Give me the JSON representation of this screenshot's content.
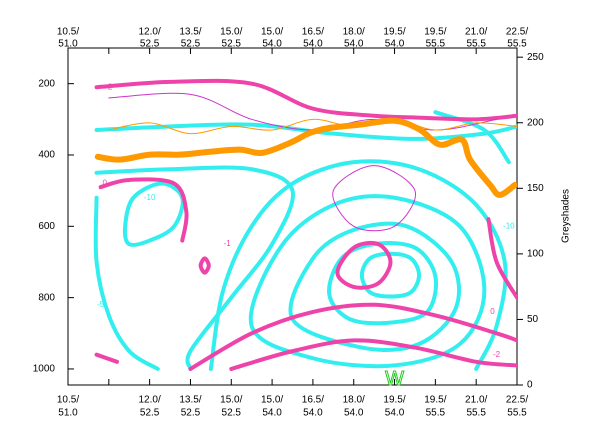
{
  "chart_data": {
    "type": "contour",
    "categories": [
      "10.5/",
      null,
      "12.0/",
      "13.5/",
      "15.0/",
      "15.0/",
      "16.5/",
      "18.0/",
      "19.5/",
      "19.5/",
      "21.0/",
      "22.5/"
    ],
    "categories_lat": [
      "51.0",
      null,
      "52.5",
      "52.5",
      "52.5",
      "54.0",
      "54.0",
      "54.0",
      "54.0",
      "55.5",
      "55.5",
      "55.5"
    ],
    "ylim": [
      1045,
      100
    ],
    "yticks": [
      200,
      400,
      600,
      800,
      1000
    ],
    "y2lim": [
      0,
      257
    ],
    "y2ticks": [
      0,
      50,
      100,
      150,
      200,
      250
    ],
    "y2label": "Greyshades",
    "contours": [
      {
        "color": "#33eeee",
        "width": 4,
        "closed": false,
        "x": [
          0.7,
          2.5,
          4.5,
          6.5,
          8.5,
          10.2,
          11.0
        ],
        "p": [
          330,
          320,
          315,
          340,
          355,
          340,
          320
        ]
      },
      {
        "color": "#33eeee",
        "width": 4,
        "closed": false,
        "x": [
          0.7,
          2.5,
          4.5,
          5.5,
          5.0,
          4.0,
          3.0,
          3.0
        ],
        "p": [
          450,
          440,
          440,
          500,
          650,
          800,
          950,
          1000
        ]
      },
      {
        "color": "#33eeee",
        "width": 4,
        "closed": false,
        "x": [
          0.7,
          0.7,
          1.0,
          1.5,
          2.2
        ],
        "p": [
          520,
          700,
          850,
          950,
          1000
        ]
      },
      {
        "color": "#33eeee",
        "width": 4,
        "closed": true,
        "x": [
          1.4,
          1.6,
          2.3,
          2.8,
          2.6,
          2.0,
          1.5
        ],
        "p": [
          600,
          520,
          480,
          520,
          600,
          640,
          650
        ]
      },
      {
        "color": "#33eeee",
        "width": 4,
        "closed": true,
        "x": [
          7.2,
          7.4,
          7.9,
          8.4,
          8.6,
          8.4,
          7.9,
          7.4
        ],
        "p": [
          737,
          690,
          677,
          690,
          737,
          785,
          797,
          785
        ]
      },
      {
        "color": "#33eeee",
        "width": 4,
        "closed": true,
        "x": [
          6.4,
          6.7,
          7.5,
          8.5,
          9.0,
          8.8,
          7.9,
          6.9
        ],
        "p": [
          790,
          690,
          650,
          660,
          740,
          840,
          870,
          860
        ]
      },
      {
        "color": "#33eeee",
        "width": 4,
        "closed": true,
        "x": [
          5.5,
          6.0,
          7.0,
          8.3,
          9.4,
          9.5,
          8.6,
          7.2
        ],
        "p": [
          860,
          690,
          610,
          600,
          700,
          830,
          930,
          940
        ]
      },
      {
        "color": "#33eeee",
        "width": 4,
        "closed": true,
        "x": [
          4.5,
          5.2,
          6.5,
          8.0,
          9.6,
          10.2,
          9.6,
          8.0,
          6.0
        ],
        "p": [
          880,
          660,
          540,
          520,
          600,
          780,
          930,
          990,
          970
        ]
      },
      {
        "color": "#33eeee",
        "width": 4,
        "closed": false,
        "x": [
          3.5,
          3.8,
          4.5,
          5.5,
          7.0,
          8.6,
          10.0,
          10.7,
          10.5,
          10.0
        ],
        "p": [
          1000,
          780,
          600,
          480,
          420,
          440,
          540,
          700,
          880,
          1000
        ]
      },
      {
        "color": "#33eeee",
        "width": 4,
        "closed": false,
        "x": [
          9.0,
          10.2,
          10.8
        ],
        "p": [
          280,
          330,
          420
        ]
      },
      {
        "color": "#ee44aa",
        "width": 4,
        "closed": false,
        "x": [
          0.7,
          2.5,
          4.5,
          6.0,
          7.5,
          8.5,
          10.0,
          11.0
        ],
        "p": [
          210,
          195,
          200,
          270,
          290,
          295,
          300,
          290
        ]
      },
      {
        "color": "#ee44aa",
        "width": 4,
        "closed": false,
        "x": [
          0.8,
          1.5,
          2.6,
          2.9,
          2.8
        ],
        "p": [
          490,
          470,
          480,
          560,
          640
        ]
      },
      {
        "color": "#ee44aa",
        "width": 4,
        "closed": true,
        "x": [
          3.25,
          3.35,
          3.45,
          3.35
        ],
        "p": [
          710,
          690,
          710,
          730
        ]
      },
      {
        "color": "#ee44aa",
        "width": 4,
        "closed": true,
        "x": [
          6.6,
          7.0,
          7.6,
          7.9,
          7.6,
          7.0
        ],
        "p": [
          730,
          660,
          650,
          700,
          760,
          770
        ]
      },
      {
        "color": "#ee44aa",
        "width": 4,
        "closed": false,
        "x": [
          3.0,
          4.5,
          6.0,
          7.5,
          9.0,
          10.5,
          11.0
        ],
        "p": [
          1000,
          900,
          840,
          820,
          850,
          900,
          920
        ]
      },
      {
        "color": "#ee44aa",
        "width": 4,
        "closed": false,
        "x": [
          4.0,
          5.5,
          7.0,
          8.5,
          10.0,
          11.0
        ],
        "p": [
          1000,
          950,
          920,
          940,
          980,
          990
        ]
      },
      {
        "color": "#ee44aa",
        "width": 4,
        "closed": false,
        "x": [
          10.3,
          10.5,
          11.0
        ],
        "p": [
          580,
          700,
          800
        ]
      },
      {
        "color": "#ee44aa",
        "width": 4,
        "closed": false,
        "x": [
          0.7,
          1.2
        ],
        "p": [
          960,
          980
        ]
      },
      {
        "color": "#cc33cc",
        "width": 1,
        "closed": false,
        "x": [
          1.0,
          3.0,
          4.5,
          6.0,
          7.5,
          9.0,
          10.5
        ],
        "p": [
          240,
          230,
          300,
          330,
          300,
          330,
          300
        ]
      },
      {
        "color": "#cc33cc",
        "width": 1,
        "closed": true,
        "x": [
          6.5,
          7.5,
          8.5,
          8.0,
          7.0
        ],
        "p": [
          500,
          430,
          500,
          600,
          600
        ]
      },
      {
        "color": "#ff9900",
        "width": 1,
        "closed": false,
        "x": [
          1.0,
          2.0,
          3.0,
          4.0,
          5.0,
          6.0,
          7.0,
          8.0,
          9.0,
          10.0,
          11.0
        ],
        "p": [
          330,
          310,
          340,
          320,
          330,
          300,
          320,
          300,
          330,
          310,
          320
        ]
      },
      {
        "color": "#ff9900",
        "width": 6,
        "closed": false,
        "x": [
          0.73,
          1.27,
          2.01,
          2.74,
          3.48,
          4.21,
          4.75,
          5.44,
          5.93,
          6.42,
          7.15,
          8.01,
          8.62,
          9.11,
          9.65,
          9.85,
          10.34,
          10.58,
          10.95
        ],
        "p": [
          405,
          413,
          399,
          399,
          391,
          385,
          394,
          366,
          338,
          324,
          315,
          304,
          329,
          371,
          357,
          413,
          484,
          512,
          484
        ]
      }
    ],
    "contour_labels": [
      {
        "text": "-2",
        "x": 1.0,
        "p": 210,
        "color": "#ee44aa"
      },
      {
        "text": "0",
        "x": 0.9,
        "p": 480,
        "color": "#ee44aa"
      },
      {
        "text": "-1",
        "x": 3.9,
        "p": 650,
        "color": "#ee44aa"
      },
      {
        "text": "-10",
        "x": 2.0,
        "p": 520,
        "color": "#33eeee"
      },
      {
        "text": "-5",
        "x": 0.8,
        "p": 820,
        "color": "#33eeee"
      },
      {
        "text": "-10",
        "x": 10.8,
        "p": 600,
        "color": "#33eeee"
      },
      {
        "text": "0",
        "x": 10.4,
        "p": 840,
        "color": "#ee44aa"
      },
      {
        "text": "-2",
        "x": 10.5,
        "p": 960,
        "color": "#ee44aa"
      }
    ],
    "marker": {
      "text": "W",
      "x": 8.0,
      "p": 1030,
      "color": "#22cc22"
    }
  }
}
